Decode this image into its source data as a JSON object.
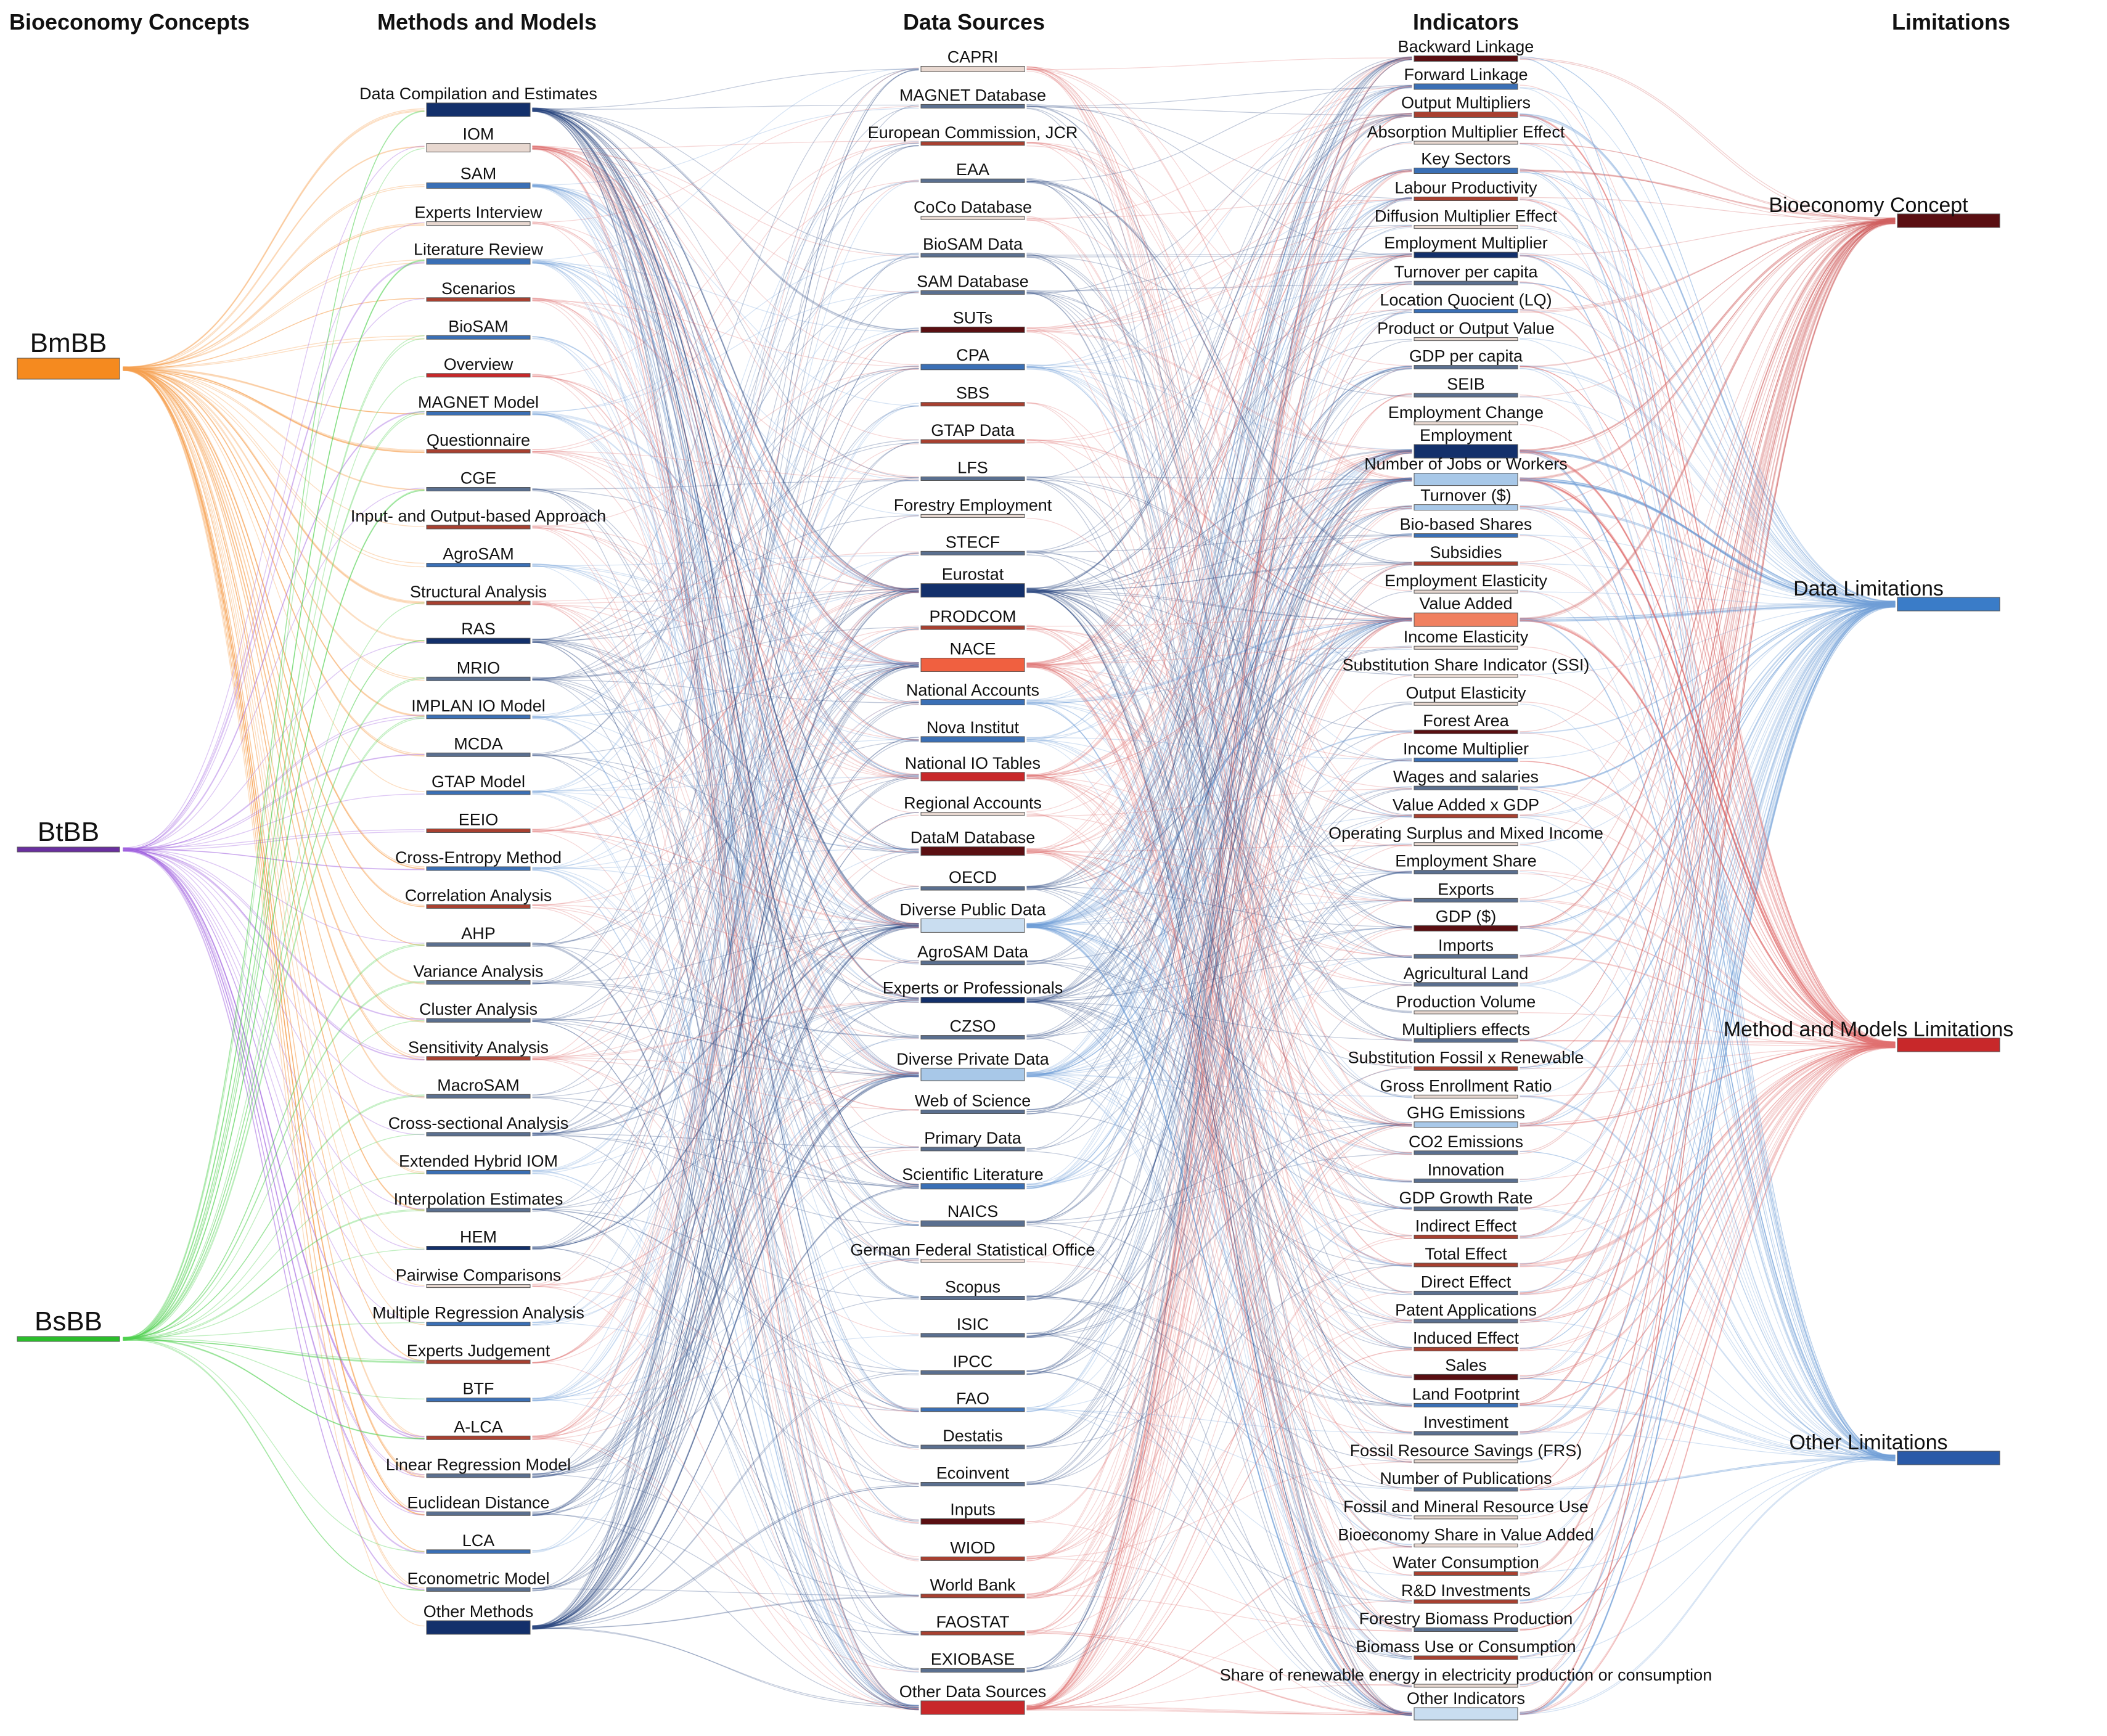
{
  "columns": [
    {
      "key": "concepts",
      "title": "Bioeconomy Concepts"
    },
    {
      "key": "methods",
      "title": "Methods and Models"
    },
    {
      "key": "sources",
      "title": "Data Sources"
    },
    {
      "key": "indicators",
      "title": "Indicators"
    },
    {
      "key": "limitations",
      "title": "Limitations"
    }
  ],
  "colors": {
    "flow_red": "#e07070",
    "flow_blue": "#6f9fd8",
    "flow_navy": "#26457f",
    "flow_orange": "#f5a050",
    "flow_purple": "#a060e0",
    "flow_green": "#50d050",
    "node_navy": "#13306b",
    "node_blue": "#3a6fb5",
    "node_lightblue": "#a8c8e8",
    "node_paleblue": "#c9ddf0",
    "node_maroon": "#5a0f12",
    "node_red": "#c8282a",
    "node_salmon": "#f08060",
    "node_pale": "#e8d8d0",
    "node_orange": "#f58a1f",
    "node_purple": "#6a2fa0",
    "node_green": "#2bbd2b"
  },
  "concepts": [
    {
      "label": "BmBB",
      "color": "#f58a1f",
      "weight": 10,
      "flow": "#f5a050"
    },
    {
      "label": "BtBB",
      "color": "#6a2fa0",
      "weight": 2,
      "flow": "#a060e0"
    },
    {
      "label": "BsBB",
      "color": "#2bbd2b",
      "weight": 2,
      "flow": "#50d050"
    }
  ],
  "methods": [
    {
      "label": "Data Compilation and Estimates",
      "color": "#13306b",
      "weight": 10
    },
    {
      "label": "IOM",
      "color": "#e8d8d0",
      "weight": 5
    },
    {
      "label": "SAM",
      "color": "#3a6fb5",
      "weight": 4
    },
    {
      "label": "Experts Interview",
      "color": "#e8d8d0",
      "weight": 2
    },
    {
      "label": "Literature Review",
      "color": "#3a6fb5",
      "weight": 3
    },
    {
      "label": "Scenarios",
      "color": "#a84030",
      "weight": 2
    },
    {
      "label": "BioSAM",
      "color": "#3a6fb5",
      "weight": 2
    },
    {
      "label": "Overview",
      "color": "#c8282a",
      "weight": 2
    },
    {
      "label": "MAGNET Model",
      "color": "#3a6fb5",
      "weight": 2
    },
    {
      "label": "Questionnaire",
      "color": "#a84030",
      "weight": 2
    },
    {
      "label": "CGE",
      "color": "#5a6f8f",
      "weight": 2
    },
    {
      "label": "Input- and Output-based Approach",
      "color": "#a84030",
      "weight": 2
    },
    {
      "label": "AgroSAM",
      "color": "#3a6fb5",
      "weight": 2
    },
    {
      "label": "Structural Analysis",
      "color": "#a84030",
      "weight": 2
    },
    {
      "label": "RAS",
      "color": "#13306b",
      "weight": 3
    },
    {
      "label": "MRIO",
      "color": "#5a6f8f",
      "weight": 2
    },
    {
      "label": "IMPLAN IO Model",
      "color": "#3a6fb5",
      "weight": 2
    },
    {
      "label": "MCDA",
      "color": "#5a6f8f",
      "weight": 2
    },
    {
      "label": "GTAP Model",
      "color": "#3a6fb5",
      "weight": 2
    },
    {
      "label": "EEIO",
      "color": "#a84030",
      "weight": 2
    },
    {
      "label": "Cross-Entropy Method",
      "color": "#3a6fb5",
      "weight": 2
    },
    {
      "label": "Correlation Analysis",
      "color": "#a84030",
      "weight": 2
    },
    {
      "label": "AHP",
      "color": "#5a6f8f",
      "weight": 2
    },
    {
      "label": "Variance Analysis",
      "color": "#5a6f8f",
      "weight": 2
    },
    {
      "label": "Cluster Analysis",
      "color": "#5a6f8f",
      "weight": 2
    },
    {
      "label": "Sensitivity Analysis",
      "color": "#a84030",
      "weight": 2
    },
    {
      "label": "MacroSAM",
      "color": "#5a6f8f",
      "weight": 2
    },
    {
      "label": "Cross-sectional Analysis",
      "color": "#5a6f8f",
      "weight": 2
    },
    {
      "label": "Extended Hybrid IOM",
      "color": "#3a6fb5",
      "weight": 2
    },
    {
      "label": "Interpolation Estimates",
      "color": "#5a6f8f",
      "weight": 2
    },
    {
      "label": "HEM",
      "color": "#13306b",
      "weight": 2
    },
    {
      "label": "Pairwise Comparisons",
      "color": "#e8d8d0",
      "weight": 1
    },
    {
      "label": "Multiple Regression Analysis",
      "color": "#3a6fb5",
      "weight": 2
    },
    {
      "label": "Experts Judgement",
      "color": "#a84030",
      "weight": 2
    },
    {
      "label": "BTF",
      "color": "#3a6fb5",
      "weight": 2
    },
    {
      "label": "A-LCA",
      "color": "#a84030",
      "weight": 2
    },
    {
      "label": "Linear Regression Model",
      "color": "#5a6f8f",
      "weight": 2
    },
    {
      "label": "Euclidean Distance",
      "color": "#5a6f8f",
      "weight": 2
    },
    {
      "label": "LCA",
      "color": "#3a6fb5",
      "weight": 2
    },
    {
      "label": "Econometric Model",
      "color": "#5a6f8f",
      "weight": 2
    },
    {
      "label": "Other Methods",
      "color": "#13306b",
      "weight": 10
    }
  ],
  "sources": [
    {
      "label": "CAPRI",
      "color": "#e8d8d0",
      "weight": 3
    },
    {
      "label": "MAGNET Database",
      "color": "#5a6f8f",
      "weight": 2
    },
    {
      "label": "European Commission, JCR",
      "color": "#a84030",
      "weight": 2
    },
    {
      "label": "EAA",
      "color": "#5a6f8f",
      "weight": 2
    },
    {
      "label": "CoCo Database",
      "color": "#e8d8d0",
      "weight": 1
    },
    {
      "label": "BioSAM Data",
      "color": "#5a6f8f",
      "weight": 2
    },
    {
      "label": "SAM Database",
      "color": "#5a6f8f",
      "weight": 2
    },
    {
      "label": "SUTs",
      "color": "#5a0f12",
      "weight": 3
    },
    {
      "label": "CPA",
      "color": "#3a6fb5",
      "weight": 3
    },
    {
      "label": "SBS",
      "color": "#a84030",
      "weight": 2
    },
    {
      "label": "GTAP Data",
      "color": "#a84030",
      "weight": 2
    },
    {
      "label": "LFS",
      "color": "#5a6f8f",
      "weight": 2
    },
    {
      "label": "Forestry Employment",
      "color": "#e8d8d0",
      "weight": 1
    },
    {
      "label": "STECF",
      "color": "#5a6f8f",
      "weight": 2
    },
    {
      "label": "Eurostat",
      "color": "#13306b",
      "weight": 10
    },
    {
      "label": "PRODCOM",
      "color": "#a84030",
      "weight": 2
    },
    {
      "label": "NACE",
      "color": "#f06040",
      "weight": 10
    },
    {
      "label": "National Accounts",
      "color": "#3a6fb5",
      "weight": 3
    },
    {
      "label": "Nova Institut",
      "color": "#3a6fb5",
      "weight": 3
    },
    {
      "label": "National IO Tables",
      "color": "#c8282a",
      "weight": 6
    },
    {
      "label": "Regional Accounts",
      "color": "#e8d8d0",
      "weight": 1
    },
    {
      "label": "DataM Database",
      "color": "#5a0f12",
      "weight": 5
    },
    {
      "label": "OECD",
      "color": "#5a6f8f",
      "weight": 2
    },
    {
      "label": "Diverse Public Data",
      "color": "#c9ddf0",
      "weight": 14
    },
    {
      "label": "AgroSAM Data",
      "color": "#5a6f8f",
      "weight": 2
    },
    {
      "label": "Experts or Professionals",
      "color": "#13306b",
      "weight": 4
    },
    {
      "label": "CZSO",
      "color": "#5a6f8f",
      "weight": 2
    },
    {
      "label": "Diverse Private Data",
      "color": "#a8c8e8",
      "weight": 8
    },
    {
      "label": "Web of Science",
      "color": "#5a6f8f",
      "weight": 2
    },
    {
      "label": "Primary Data",
      "color": "#5a6f8f",
      "weight": 2
    },
    {
      "label": "Scientific Literature",
      "color": "#3a6fb5",
      "weight": 4
    },
    {
      "label": "NAICS",
      "color": "#5a6f8f",
      "weight": 3
    },
    {
      "label": "German Federal Statistical Office",
      "color": "#e8d8d0",
      "weight": 1
    },
    {
      "label": "Scopus",
      "color": "#5a6f8f",
      "weight": 2
    },
    {
      "label": "ISIC",
      "color": "#5a6f8f",
      "weight": 2
    },
    {
      "label": "IPCC",
      "color": "#5a6f8f",
      "weight": 2
    },
    {
      "label": "FAO",
      "color": "#3a6fb5",
      "weight": 2
    },
    {
      "label": "Destatis",
      "color": "#5a6f8f",
      "weight": 2
    },
    {
      "label": "Ecoinvent",
      "color": "#5a6f8f",
      "weight": 2
    },
    {
      "label": "Inputs",
      "color": "#5a0f12",
      "weight": 3
    },
    {
      "label": "WIOD",
      "color": "#a84030",
      "weight": 2
    },
    {
      "label": "World Bank",
      "color": "#a84030",
      "weight": 2
    },
    {
      "label": "FAOSTAT",
      "color": "#a84030",
      "weight": 2
    },
    {
      "label": "EXIOBASE",
      "color": "#5a6f8f",
      "weight": 2
    },
    {
      "label": "Other Data Sources",
      "color": "#c8282a",
      "weight": 10
    }
  ],
  "indicators": [
    {
      "label": "Backward Linkage",
      "color": "#5a0f12",
      "weight": 4
    },
    {
      "label": "Forward Linkage",
      "color": "#3a6fb5",
      "weight": 3
    },
    {
      "label": "Output Multipliers",
      "color": "#a84030",
      "weight": 3
    },
    {
      "label": "Absorption Multiplier Effect",
      "color": "#e8d8d0",
      "weight": 1
    },
    {
      "label": "Key Sectors",
      "color": "#3a6fb5",
      "weight": 3
    },
    {
      "label": "Labour Productivity",
      "color": "#a84030",
      "weight": 2
    },
    {
      "label": "Diffusion Multiplier Effect",
      "color": "#e8d8d0",
      "weight": 1
    },
    {
      "label": "Employment Multiplier",
      "color": "#13306b",
      "weight": 4
    },
    {
      "label": "Turnover per capita",
      "color": "#5a6f8f",
      "weight": 2
    },
    {
      "label": "Location Quocient (LQ)",
      "color": "#3a6fb5",
      "weight": 2
    },
    {
      "label": "Product or Output Value",
      "color": "#e8d8d0",
      "weight": 1
    },
    {
      "label": "GDP per capita",
      "color": "#5a6f8f",
      "weight": 2
    },
    {
      "label": "SEIB",
      "color": "#5a6f8f",
      "weight": 2
    },
    {
      "label": "Employment Change",
      "color": "#e8d8d0",
      "weight": 1
    },
    {
      "label": "Employment",
      "color": "#13306b",
      "weight": 10
    },
    {
      "label": "Number of Jobs or Workers",
      "color": "#a8c8e8",
      "weight": 8
    },
    {
      "label": "Turnover ($)",
      "color": "#a8c8e8",
      "weight": 3
    },
    {
      "label": "Bio-based Shares",
      "color": "#3a6fb5",
      "weight": 2
    },
    {
      "label": "Subsidies",
      "color": "#a84030",
      "weight": 2
    },
    {
      "label": "Employment Elasticity",
      "color": "#e8d8d0",
      "weight": 1
    },
    {
      "label": "Value Added",
      "color": "#f08060",
      "weight": 10
    },
    {
      "label": "Income Elasticity",
      "color": "#e8d8d0",
      "weight": 1
    },
    {
      "label": "Substitution Share Indicator (SSI)",
      "color": "#e8d8d0",
      "weight": 1
    },
    {
      "label": "Output Elasticity",
      "color": "#e8d8d0",
      "weight": 1
    },
    {
      "label": "Forest Area",
      "color": "#5a0f12",
      "weight": 2
    },
    {
      "label": "Income Multiplier",
      "color": "#3a6fb5",
      "weight": 2
    },
    {
      "label": "Wages and salaries",
      "color": "#5a6f8f",
      "weight": 2
    },
    {
      "label": "Value Added x GDP",
      "color": "#a84030",
      "weight": 2
    },
    {
      "label": "Operating Surplus and Mixed Income",
      "color": "#e8d8d0",
      "weight": 1
    },
    {
      "label": "Employment Share",
      "color": "#5a6f8f",
      "weight": 2
    },
    {
      "label": "Exports",
      "color": "#5a6f8f",
      "weight": 2
    },
    {
      "label": "GDP ($)",
      "color": "#5a0f12",
      "weight": 3
    },
    {
      "label": "Imports",
      "color": "#5a6f8f",
      "weight": 2
    },
    {
      "label": "Agricultural Land",
      "color": "#5a6f8f",
      "weight": 2
    },
    {
      "label": "Production Volume",
      "color": "#e8d8d0",
      "weight": 1
    },
    {
      "label": "Multipliers effects",
      "color": "#5a6f8f",
      "weight": 2
    },
    {
      "label": "Substitution Fossil x Renewable",
      "color": "#a84030",
      "weight": 2
    },
    {
      "label": "Gross Enrollment Ratio",
      "color": "#e8d8d0",
      "weight": 1
    },
    {
      "label": "GHG Emissions",
      "color": "#a8c8e8",
      "weight": 3
    },
    {
      "label": "CO2 Emissions",
      "color": "#5a6f8f",
      "weight": 2
    },
    {
      "label": "Innovation",
      "color": "#5a6f8f",
      "weight": 2
    },
    {
      "label": "GDP Growth Rate",
      "color": "#5a6f8f",
      "weight": 2
    },
    {
      "label": "Indirect Effect",
      "color": "#a84030",
      "weight": 2
    },
    {
      "label": "Total Effect",
      "color": "#a84030",
      "weight": 2
    },
    {
      "label": "Direct Effect",
      "color": "#5a6f8f",
      "weight": 2
    },
    {
      "label": "Patent Applications",
      "color": "#5a6f8f",
      "weight": 2
    },
    {
      "label": "Induced Effect",
      "color": "#a84030",
      "weight": 2
    },
    {
      "label": "Sales",
      "color": "#5a0f12",
      "weight": 3
    },
    {
      "label": "Land Footprint",
      "color": "#3a6fb5",
      "weight": 2
    },
    {
      "label": "Investiment",
      "color": "#5a6f8f",
      "weight": 2
    },
    {
      "label": "Fossil Resource Savings (FRS)",
      "color": "#e8d8d0",
      "weight": 1
    },
    {
      "label": "Number of Publications",
      "color": "#5a6f8f",
      "weight": 2
    },
    {
      "label": "Fossil and Mineral Resource Use",
      "color": "#e8d8d0",
      "weight": 1
    },
    {
      "label": "Bioeconomy Share in Value Added",
      "color": "#e8d8d0",
      "weight": 1
    },
    {
      "label": "Water Consumption",
      "color": "#a84030",
      "weight": 2
    },
    {
      "label": "R&D Investments",
      "color": "#a84030",
      "weight": 2
    },
    {
      "label": "Forestry Biomass Production",
      "color": "#5a6f8f",
      "weight": 2
    },
    {
      "label": "Biomass Use or Consumption",
      "color": "#a84030",
      "weight": 2
    },
    {
      "label": "Share of renewable energy in electricity production or consumption",
      "color": "#e8d8d0",
      "weight": 1
    },
    {
      "label": "Other Indicators",
      "color": "#c9ddf0",
      "weight": 8
    }
  ],
  "limitations": [
    {
      "label": "Bioeconomy Concept",
      "color": "#5a0f12",
      "weight": 5,
      "flow": "#d06060"
    },
    {
      "label": "Data Limitations",
      "color": "#3a7cc8",
      "weight": 8,
      "flow": "#6f9fd8"
    },
    {
      "label": "Method and Models Limitations",
      "color": "#c8282a",
      "weight": 6,
      "flow": "#e07070"
    },
    {
      "label": "Other Limitations",
      "color": "#2a5aa8",
      "weight": 4,
      "flow": "#6f9fd8"
    }
  ]
}
